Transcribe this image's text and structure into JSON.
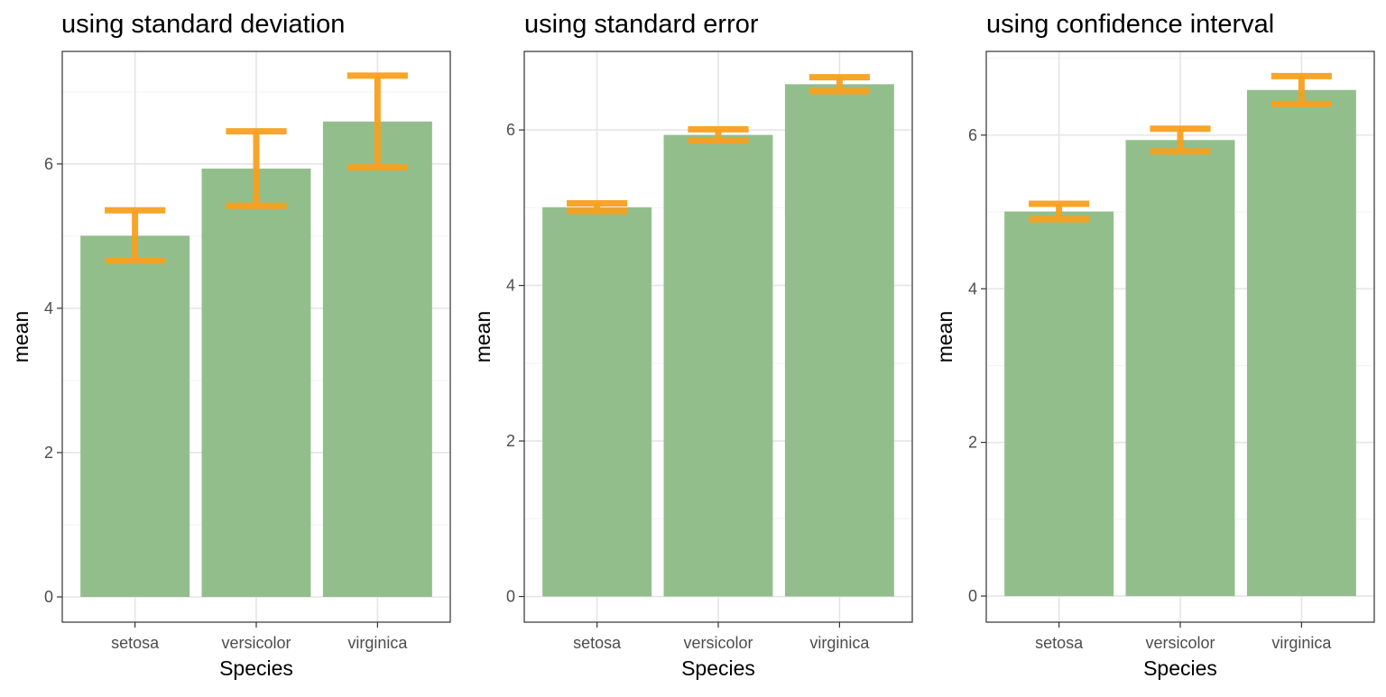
{
  "chart_data": [
    {
      "type": "bar",
      "title": "using standard deviation",
      "xlabel": "Species",
      "ylabel": "mean",
      "categories": [
        "setosa",
        "versicolor",
        "virginica"
      ],
      "values": [
        5.006,
        5.936,
        6.588
      ],
      "error_low": [
        4.654,
        5.42,
        5.952
      ],
      "error_high": [
        5.358,
        6.452,
        7.224
      ],
      "y_ticks": [
        0,
        2,
        4,
        6
      ],
      "ylim": [
        -0.35,
        7.56
      ],
      "grid": true
    },
    {
      "type": "bar",
      "title": "using standard error",
      "xlabel": "Species",
      "ylabel": "mean",
      "categories": [
        "setosa",
        "versicolor",
        "virginica"
      ],
      "values": [
        5.006,
        5.936,
        6.588
      ],
      "error_low": [
        4.956,
        5.863,
        6.498
      ],
      "error_high": [
        5.056,
        6.009,
        6.678
      ],
      "y_ticks": [
        0,
        2,
        4,
        6
      ],
      "ylim": [
        -0.33,
        7.01
      ],
      "grid": true
    },
    {
      "type": "bar",
      "title": "using confidence interval",
      "xlabel": "Species",
      "ylabel": "mean",
      "categories": [
        "setosa",
        "versicolor",
        "virginica"
      ],
      "values": [
        5.006,
        5.936,
        6.588
      ],
      "error_low": [
        4.906,
        5.789,
        6.407
      ],
      "error_high": [
        5.106,
        6.083,
        6.769
      ],
      "y_ticks": [
        0,
        2,
        4,
        6
      ],
      "ylim": [
        -0.34,
        7.09
      ],
      "grid": true
    }
  ],
  "colors": {
    "bar_fill": "#90BD8A",
    "error_bar": "#F7A020",
    "grid_major": "#E5E5E5",
    "grid_minor": "#F2F2F2",
    "panel_border": "#333333"
  }
}
